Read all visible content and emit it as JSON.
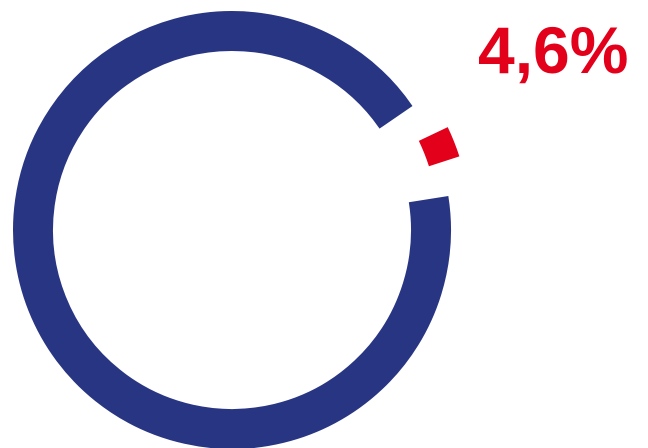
{
  "chart_data": {
    "type": "pie",
    "variant": "donut",
    "title": "",
    "slices": [
      {
        "value": 4.6,
        "label": "4,6%",
        "color": "#e2001a",
        "highlighted": true
      },
      {
        "value": 95.4,
        "label": "",
        "color": "#283582",
        "highlighted": false
      }
    ],
    "legend": "none"
  }
}
